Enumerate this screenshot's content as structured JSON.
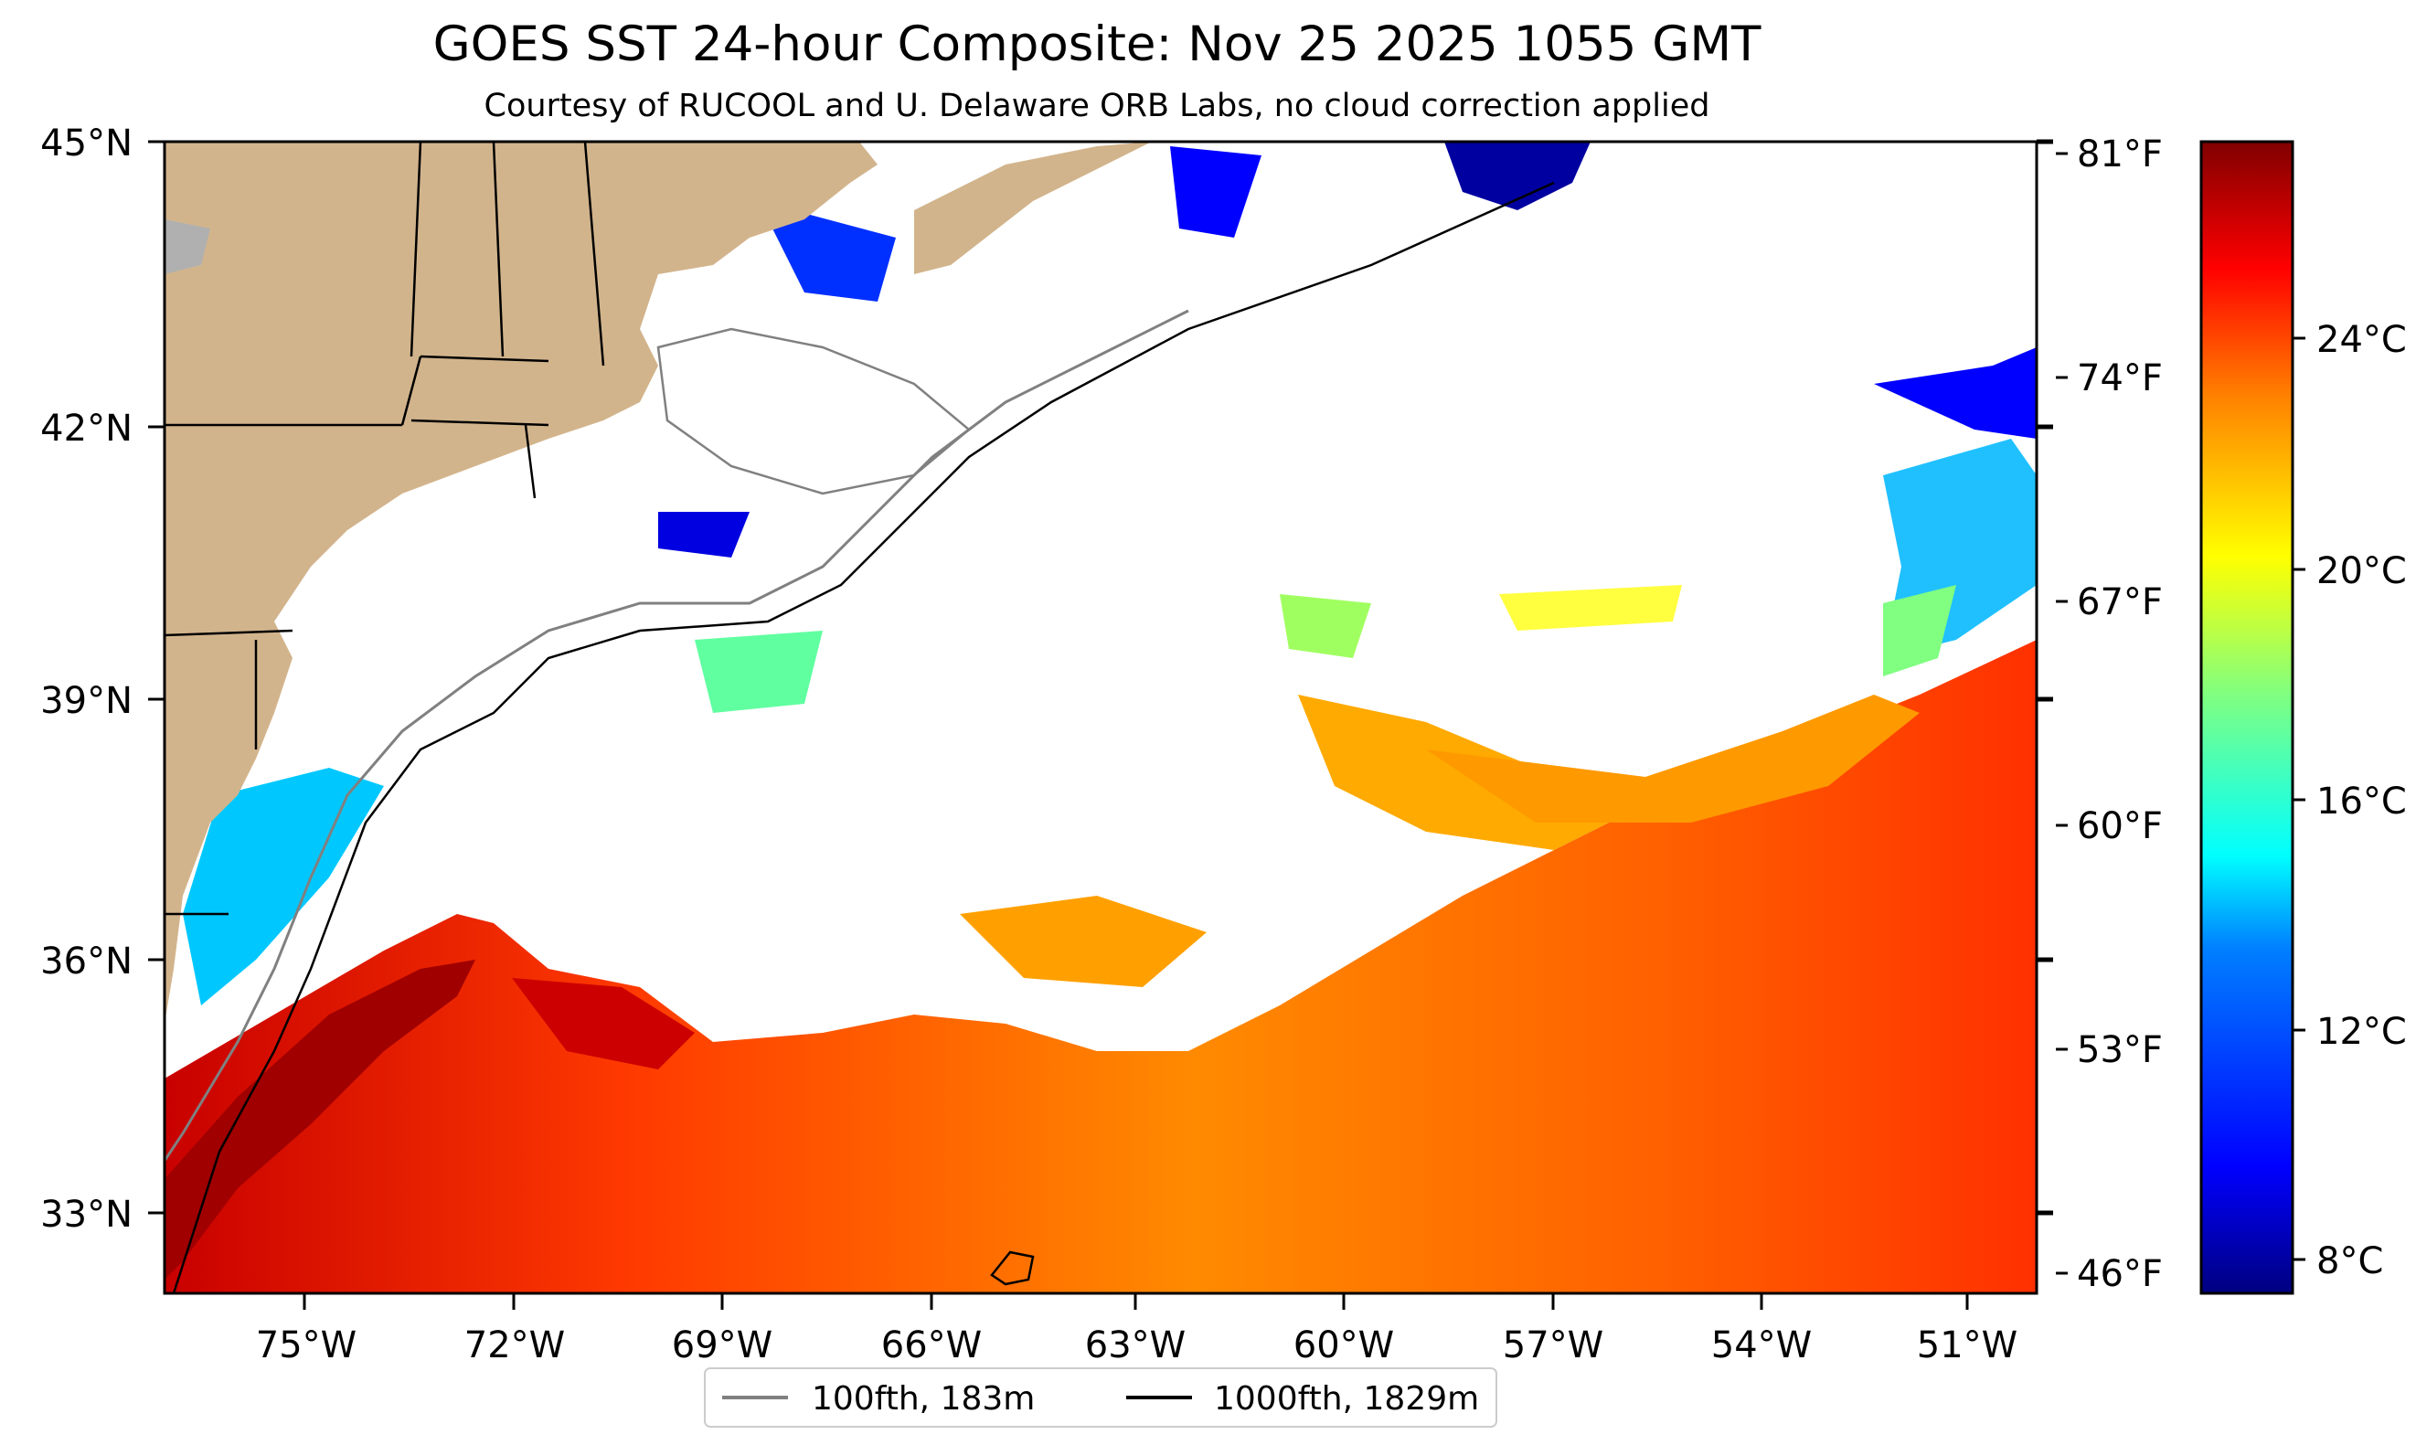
{
  "title": "GOES SST 24-hour Composite: Nov 25 2025 1055 GMT",
  "subtitle": "Courtesy of RUCOOL and U. Delaware ORB Labs, no cloud correction applied",
  "map": {
    "lat_labels": [
      "45°N",
      "42°N",
      "39°N",
      "36°N",
      "33°N"
    ],
    "lon_labels": [
      "75°W",
      "72°W",
      "69°W",
      "66°W",
      "63°W",
      "60°W",
      "57°W",
      "54°W",
      "51°W"
    ],
    "land_color": "#d2b48c",
    "cloud_color": "#ffffff"
  },
  "fahrenheit_ticks": [
    "81°F",
    "74°F",
    "67°F",
    "60°F",
    "53°F",
    "46°F"
  ],
  "colorbar": {
    "celsius_ticks": [
      "24°C",
      "20°C",
      "16°C",
      "12°C",
      "8°C"
    ],
    "colors": [
      "#800000",
      "#ff0000",
      "#ff8000",
      "#ffff00",
      "#80ff80",
      "#00ffff",
      "#0080ff",
      "#0000ff",
      "#000080"
    ]
  },
  "legend": {
    "items": [
      {
        "label": "100fth, 183m",
        "color": "#808080"
      },
      {
        "label": "1000fth, 1829m",
        "color": "#000000"
      }
    ]
  }
}
